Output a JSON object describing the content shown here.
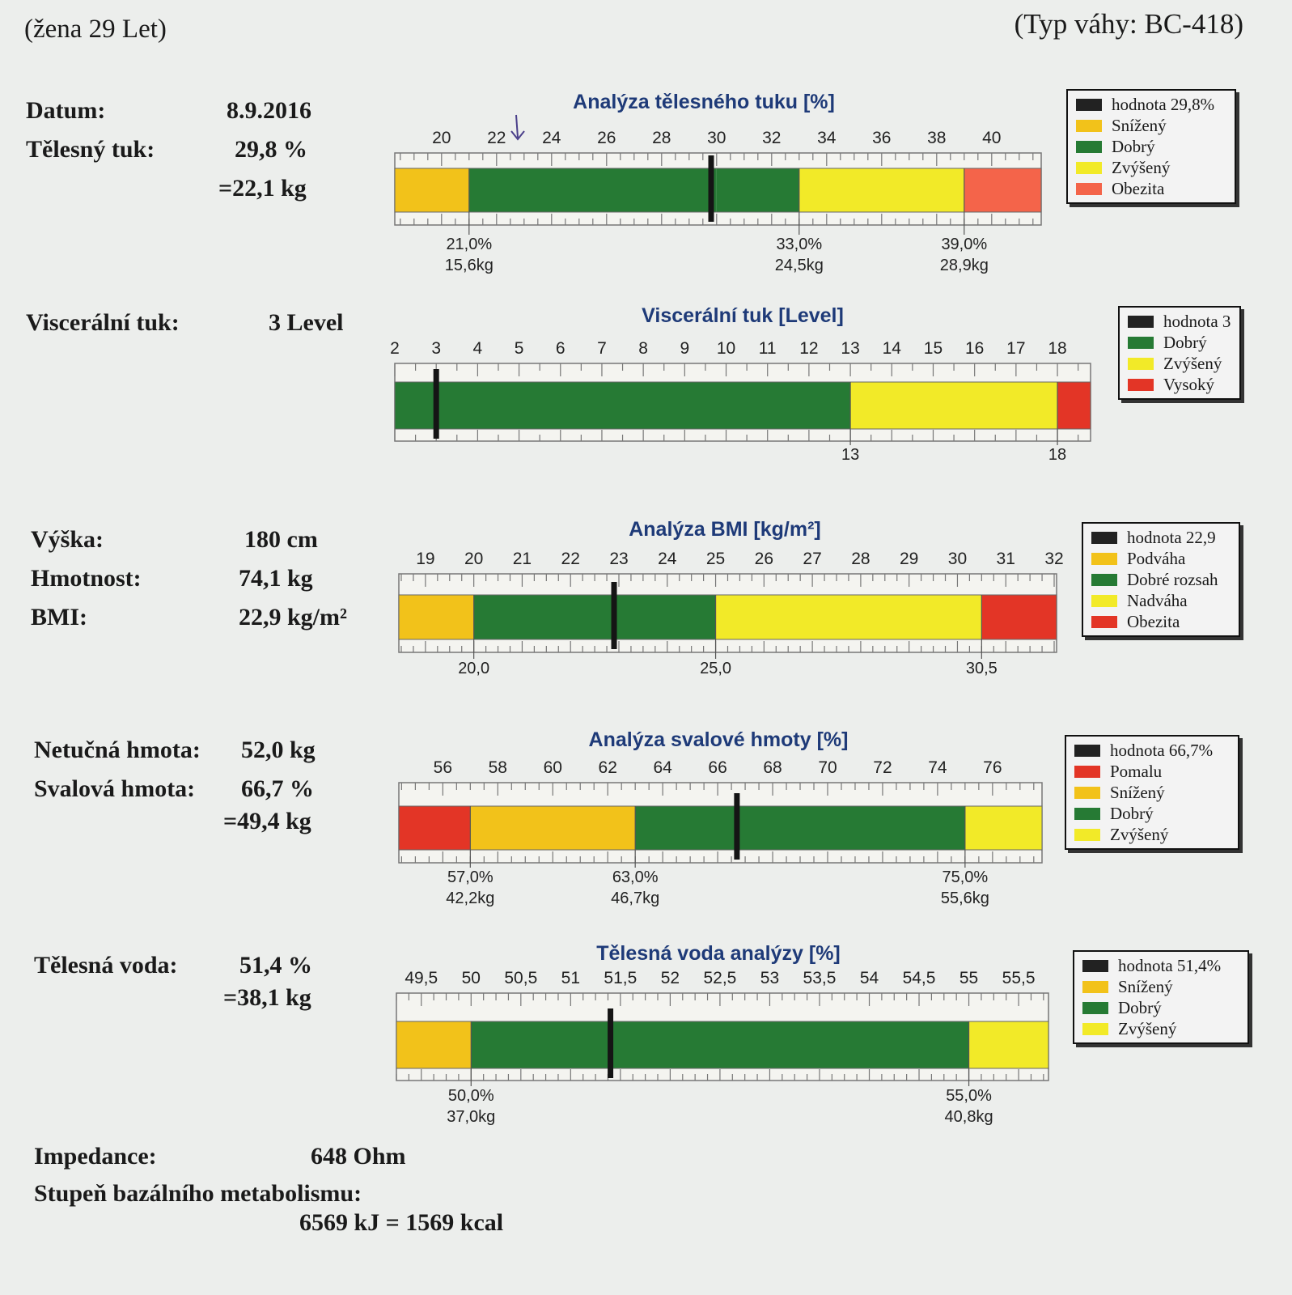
{
  "header": {
    "left": "(žena 29 Let)",
    "right": "(Typ váhy: BC-418)"
  },
  "summary": {
    "date_label": "Datum:",
    "date_value": "8.9.2016",
    "fat_label": "Tělesný tuk:",
    "fat_value": "29,8 %",
    "fat_kg": "=22,1 kg",
    "visceral_label": "Viscerální tuk:",
    "visceral_value": "3 Level",
    "height_label": "Výška:",
    "height_value": "180 cm",
    "weight_label": "Hmotnost:",
    "weight_value": "74,1 kg",
    "bmi_label": "BMI:",
    "bmi_value": "22,9 kg/m²",
    "lean_label": "Netučná hmota:",
    "lean_value": "52,0 kg",
    "muscle_label": "Svalová hmota:",
    "muscle_value": "66,7 %",
    "muscle_kg": "=49,4 kg",
    "water_label": "Tělesná voda:",
    "water_value": "51,4 %",
    "water_kg": "=38,1 kg"
  },
  "footer": {
    "impedance_label": "Impedance:",
    "impedance_value": "648 Ohm",
    "bmr_label": "Stupeň bazálního metabolismu:",
    "bmr_value": "6569 kJ = 1569 kcal"
  },
  "colors": {
    "black": "#222222",
    "orange": "#f2c21a",
    "green": "#267a34",
    "yellow": "#f2ea28",
    "red": "#e33526",
    "salmon": "#f4644a",
    "title": "#1e3a78"
  },
  "chart_data": [
    {
      "type": "bar",
      "id": "fat",
      "title": "Analýza tělesného tuku [%]",
      "xlim": [
        18.3,
        41.8
      ],
      "ticks": [
        20,
        22,
        24,
        26,
        28,
        30,
        32,
        34,
        36,
        38,
        40
      ],
      "tick_labels": [
        "20",
        "22",
        "24",
        "26",
        "28",
        "30",
        "32",
        "34",
        "36",
        "38",
        "40"
      ],
      "minor_step": 0.5,
      "segments": [
        {
          "from": 18.3,
          "to": 21.0,
          "color": "#f2c21a"
        },
        {
          "from": 21.0,
          "to": 30.0,
          "color": "#267a34"
        },
        {
          "from": 30.0,
          "to": 33.0,
          "color": "#267a34"
        },
        {
          "from": 33.0,
          "to": 39.0,
          "color": "#f2ea28"
        },
        {
          "from": 39.0,
          "to": 41.8,
          "color": "#f4644a"
        }
      ],
      "marker": 29.8,
      "thresholds": [
        {
          "x": 21.0,
          "lines": [
            "21,0%",
            "15,6kg"
          ]
        },
        {
          "x": 33.0,
          "lines": [
            "33,0%",
            "24,5kg"
          ]
        },
        {
          "x": 39.0,
          "lines": [
            "39,0%",
            "28,9kg"
          ]
        }
      ],
      "legend": [
        {
          "label": "hodnota 29,8%",
          "color": "#222222"
        },
        {
          "label": "Snížený",
          "color": "#f2c21a"
        },
        {
          "label": "Dobrý",
          "color": "#267a34"
        },
        {
          "label": "Zvýšený",
          "color": "#f2ea28"
        },
        {
          "label": "Obezita",
          "color": "#f4644a"
        }
      ]
    },
    {
      "type": "bar",
      "id": "visceral",
      "title": "Viscerální tuk [Level]",
      "xlim": [
        2,
        18.8
      ],
      "ticks": [
        2,
        3,
        4,
        5,
        6,
        7,
        8,
        9,
        10,
        11,
        12,
        13,
        14,
        15,
        16,
        17,
        18
      ],
      "tick_labels": [
        "2",
        "3",
        "4",
        "5",
        "6",
        "7",
        "8",
        "9",
        "10",
        "11",
        "12",
        "13",
        "14",
        "15",
        "16",
        "17",
        "18"
      ],
      "minor_step": 0.5,
      "segments": [
        {
          "from": 2,
          "to": 13,
          "color": "#267a34"
        },
        {
          "from": 13,
          "to": 18,
          "color": "#f2ea28"
        },
        {
          "from": 18,
          "to": 18.8,
          "color": "#e33526"
        }
      ],
      "marker": 3,
      "thresholds": [
        {
          "x": 13,
          "lines": [
            "13"
          ]
        },
        {
          "x": 18,
          "lines": [
            "18"
          ]
        }
      ],
      "legend": [
        {
          "label": "hodnota 3",
          "color": "#222222"
        },
        {
          "label": "Dobrý",
          "color": "#267a34"
        },
        {
          "label": "Zvýšený",
          "color": "#f2ea28"
        },
        {
          "label": "Vysoký",
          "color": "#e33526"
        }
      ]
    },
    {
      "type": "bar",
      "id": "bmi",
      "title": "Analýza BMI [kg/m²]",
      "xlim": [
        18.45,
        32.05
      ],
      "ticks": [
        19,
        20,
        21,
        22,
        23,
        24,
        25,
        26,
        27,
        28,
        29,
        30,
        31,
        32
      ],
      "tick_labels": [
        "19",
        "20",
        "21",
        "22",
        "23",
        "24",
        "25",
        "26",
        "27",
        "28",
        "29",
        "30",
        "31",
        "32"
      ],
      "minor_step": 0.25,
      "segments": [
        {
          "from": 18.45,
          "to": 20.0,
          "color": "#f2c21a"
        },
        {
          "from": 20.0,
          "to": 25.0,
          "color": "#267a34"
        },
        {
          "from": 25.0,
          "to": 30.5,
          "color": "#f2ea28"
        },
        {
          "from": 30.5,
          "to": 32.05,
          "color": "#e33526"
        }
      ],
      "marker": 22.9,
      "thresholds": [
        {
          "x": 20.0,
          "lines": [
            "20,0"
          ]
        },
        {
          "x": 25.0,
          "lines": [
            "25,0"
          ]
        },
        {
          "x": 30.5,
          "lines": [
            "30,5"
          ]
        }
      ],
      "legend": [
        {
          "label": "hodnota 22,9",
          "color": "#222222"
        },
        {
          "label": "Podváha",
          "color": "#f2c21a"
        },
        {
          "label": "Dobré rozsah",
          "color": "#267a34"
        },
        {
          "label": "Nadváha",
          "color": "#f2ea28"
        },
        {
          "label": "Obezita",
          "color": "#e33526"
        }
      ]
    },
    {
      "type": "bar",
      "id": "muscle",
      "title": "Analýza svalové hmoty [%]",
      "xlim": [
        54.4,
        77.8
      ],
      "ticks": [
        56,
        58,
        60,
        62,
        64,
        66,
        68,
        70,
        72,
        74,
        76
      ],
      "tick_labels": [
        "56",
        "58",
        "60",
        "62",
        "64",
        "66",
        "68",
        "70",
        "72",
        "74",
        "76"
      ],
      "minor_step": 0.5,
      "segments": [
        {
          "from": 54.4,
          "to": 57.0,
          "color": "#e33526"
        },
        {
          "from": 57.0,
          "to": 63.0,
          "color": "#f2c21a"
        },
        {
          "from": 63.0,
          "to": 75.0,
          "color": "#267a34"
        },
        {
          "from": 75.0,
          "to": 77.8,
          "color": "#f2ea28"
        }
      ],
      "marker": 66.7,
      "thresholds": [
        {
          "x": 57.0,
          "lines": [
            "57,0%",
            "42,2kg"
          ]
        },
        {
          "x": 63.0,
          "lines": [
            "63,0%",
            "46,7kg"
          ]
        },
        {
          "x": 75.0,
          "lines": [
            "75,0%",
            "55,6kg"
          ]
        }
      ],
      "legend": [
        {
          "label": "hodnota 66,7%",
          "color": "#222222"
        },
        {
          "label": "Pomalu",
          "color": "#e33526"
        },
        {
          "label": "Snížený",
          "color": "#f2c21a"
        },
        {
          "label": "Dobrý",
          "color": "#267a34"
        },
        {
          "label": "Zvýšený",
          "color": "#f2ea28"
        }
      ]
    },
    {
      "type": "bar",
      "id": "water",
      "title": "Tělesná voda analýzy [%]",
      "xlim": [
        49.25,
        55.8
      ],
      "ticks": [
        49.5,
        50,
        50.5,
        51,
        51.5,
        52,
        52.5,
        53,
        53.5,
        54,
        54.5,
        55,
        55.5
      ],
      "tick_labels": [
        "49,5",
        "50",
        "50,5",
        "51",
        "51,5",
        "52",
        "52,5",
        "53",
        "53,5",
        "54",
        "54,5",
        "55",
        "55,5"
      ],
      "minor_step": 0.125,
      "segments": [
        {
          "from": 49.25,
          "to": 50.0,
          "color": "#f2c21a"
        },
        {
          "from": 50.0,
          "to": 55.0,
          "color": "#267a34"
        },
        {
          "from": 55.0,
          "to": 55.8,
          "color": "#f2ea28"
        }
      ],
      "marker": 51.4,
      "thresholds": [
        {
          "x": 50.0,
          "lines": [
            "50,0%",
            "37,0kg"
          ]
        },
        {
          "x": 55.0,
          "lines": [
            "55,0%",
            "40,8kg"
          ]
        }
      ],
      "legend": [
        {
          "label": "hodnota 51,4%",
          "color": "#222222"
        },
        {
          "label": "Snížený",
          "color": "#f2c21a"
        },
        {
          "label": "Dobrý",
          "color": "#267a34"
        },
        {
          "label": "Zvýšený",
          "color": "#f2ea28"
        }
      ]
    }
  ]
}
